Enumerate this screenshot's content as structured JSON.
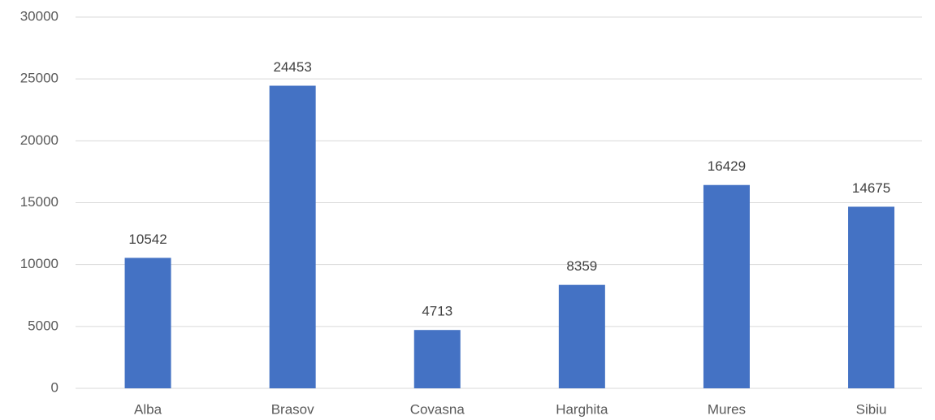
{
  "chart_data": {
    "type": "bar",
    "categories": [
      "Alba",
      "Brasov",
      "Covasna",
      "Harghita",
      "Mures",
      "Sibiu"
    ],
    "values": [
      10542,
      24453,
      4713,
      8359,
      16429,
      14675
    ],
    "color": "#4472c4",
    "ylim": [
      0,
      30000
    ],
    "yticks": [
      0,
      5000,
      10000,
      15000,
      20000,
      25000,
      30000
    ],
    "grid": true
  }
}
